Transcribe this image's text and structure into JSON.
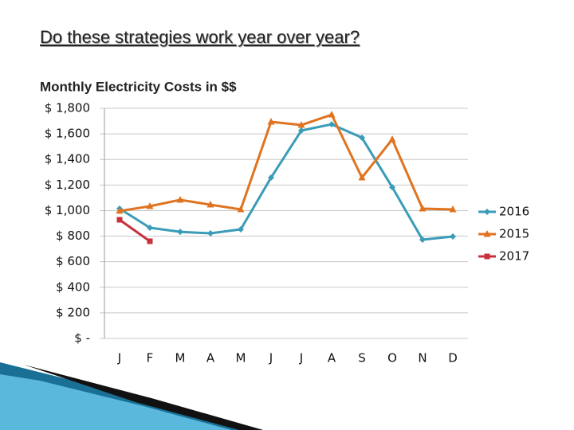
{
  "slide_title": "Do these strategies work year over year?",
  "chart_data": {
    "type": "line",
    "title": "Monthly Electricity Costs in $$",
    "categories": [
      "J",
      "F",
      "M",
      "A",
      "M",
      "J",
      "J",
      "A",
      "S",
      "O",
      "N",
      "D"
    ],
    "series": [
      {
        "name": "2016",
        "color": "#3a9cb8",
        "marker": "diamond",
        "values": [
          1015,
          866,
          834,
          822,
          853,
          1258,
          1626,
          1675,
          1570,
          1183,
          772,
          797
        ]
      },
      {
        "name": "2015",
        "color": "#e0731f",
        "marker": "triangle",
        "values": [
          997,
          1034,
          1084,
          1046,
          1009,
          1694,
          1669,
          1750,
          1258,
          1557,
          1015,
          1009
        ]
      },
      {
        "name": "2017",
        "color": "#c8313c",
        "marker": "square",
        "values": [
          928,
          760,
          null,
          null,
          null,
          null,
          null,
          null,
          null,
          null,
          null,
          null
        ]
      }
    ],
    "ylim": [
      0,
      1800
    ],
    "yticks": [
      {
        "value": 0,
        "label": "$ -"
      },
      {
        "value": 200,
        "label": "$ 200"
      },
      {
        "value": 400,
        "label": "$ 400"
      },
      {
        "value": 600,
        "label": "$ 600"
      },
      {
        "value": 800,
        "label": "$ 800"
      },
      {
        "value": 1000,
        "label": "$ 1,000"
      },
      {
        "value": 1200,
        "label": "$ 1,200"
      },
      {
        "value": 1400,
        "label": "$ 1,400"
      },
      {
        "value": 1600,
        "label": "$ 1,600"
      },
      {
        "value": 1800,
        "label": "$ 1,800"
      }
    ],
    "grid": true,
    "legend": "right"
  }
}
